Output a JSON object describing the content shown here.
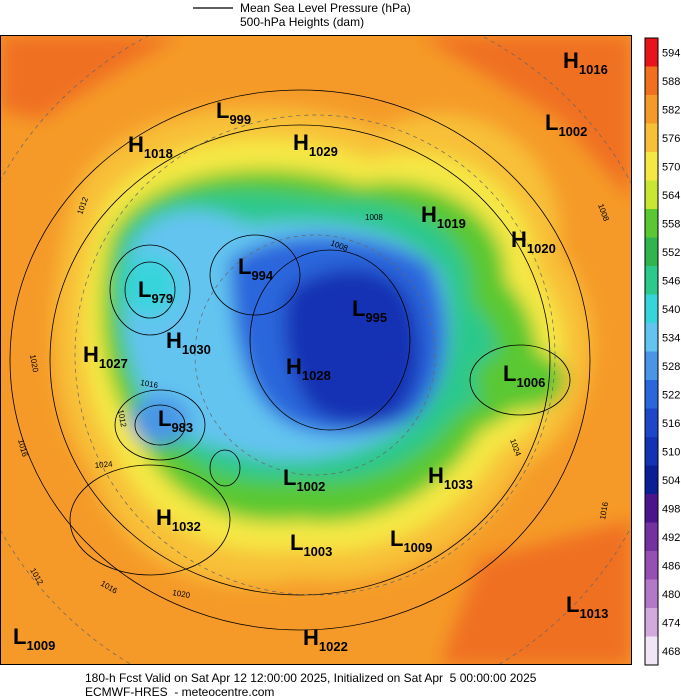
{
  "legend": {
    "line_label": "Mean Sea Level Pressure (hPa)",
    "fill_label": "500-hPa Heights (dam)"
  },
  "colorbar": {
    "ticks": [
      594,
      588,
      582,
      576,
      570,
      564,
      558,
      552,
      546,
      540,
      534,
      528,
      522,
      516,
      510,
      504,
      498,
      492,
      486,
      480,
      474,
      468
    ],
    "colors": [
      "#e8141c",
      "#f07020",
      "#f59a28",
      "#f8c038",
      "#f5e845",
      "#c8e632",
      "#5ac832",
      "#30b450",
      "#2cc88c",
      "#38d4dc",
      "#64c4f0",
      "#4a96e6",
      "#2c66dc",
      "#1e46c8",
      "#1432b4",
      "#0a1e96",
      "#4a148c",
      "#7432a0",
      "#9650b4",
      "#b478c8",
      "#d2aade",
      "#f0e6f5"
    ]
  },
  "centers": [
    {
      "type": "H",
      "value": "1016"
    },
    {
      "type": "L",
      "value": "1002"
    },
    {
      "type": "L",
      "value": "999"
    },
    {
      "type": "H",
      "value": "1018"
    },
    {
      "type": "H",
      "value": "1029"
    },
    {
      "type": "H",
      "value": "1019"
    },
    {
      "type": "H",
      "value": "1020"
    },
    {
      "type": "L",
      "value": "994"
    },
    {
      "type": "L",
      "value": "979"
    },
    {
      "type": "L",
      "value": "995"
    },
    {
      "type": "H",
      "value": "1030"
    },
    {
      "type": "H",
      "value": "1027"
    },
    {
      "type": "H",
      "value": "1028"
    },
    {
      "type": "L",
      "value": "1006"
    },
    {
      "type": "L",
      "value": "983"
    },
    {
      "type": "L",
      "value": "1002"
    },
    {
      "type": "H",
      "value": "1033"
    },
    {
      "type": "H",
      "value": "1032"
    },
    {
      "type": "L",
      "value": "1003"
    },
    {
      "type": "L",
      "value": "1009"
    },
    {
      "type": "L",
      "value": "1013"
    },
    {
      "type": "L",
      "value": "1009"
    },
    {
      "type": "H",
      "value": "1022"
    }
  ],
  "isobar_labels": [
    "1012",
    "1008",
    "1020",
    "1016",
    "1016",
    "1024",
    "1012",
    "1016",
    "1020",
    "1024",
    "1016",
    "1008",
    "1008",
    "1012"
  ],
  "footer": {
    "line1": "180-h Fcst Valid on Sat Apr 12 12:00:00 2025, Initialized on Sat Apr  5 00:00:00 2025",
    "line2": "ECMWF-HRES  - meteocentre.com"
  }
}
